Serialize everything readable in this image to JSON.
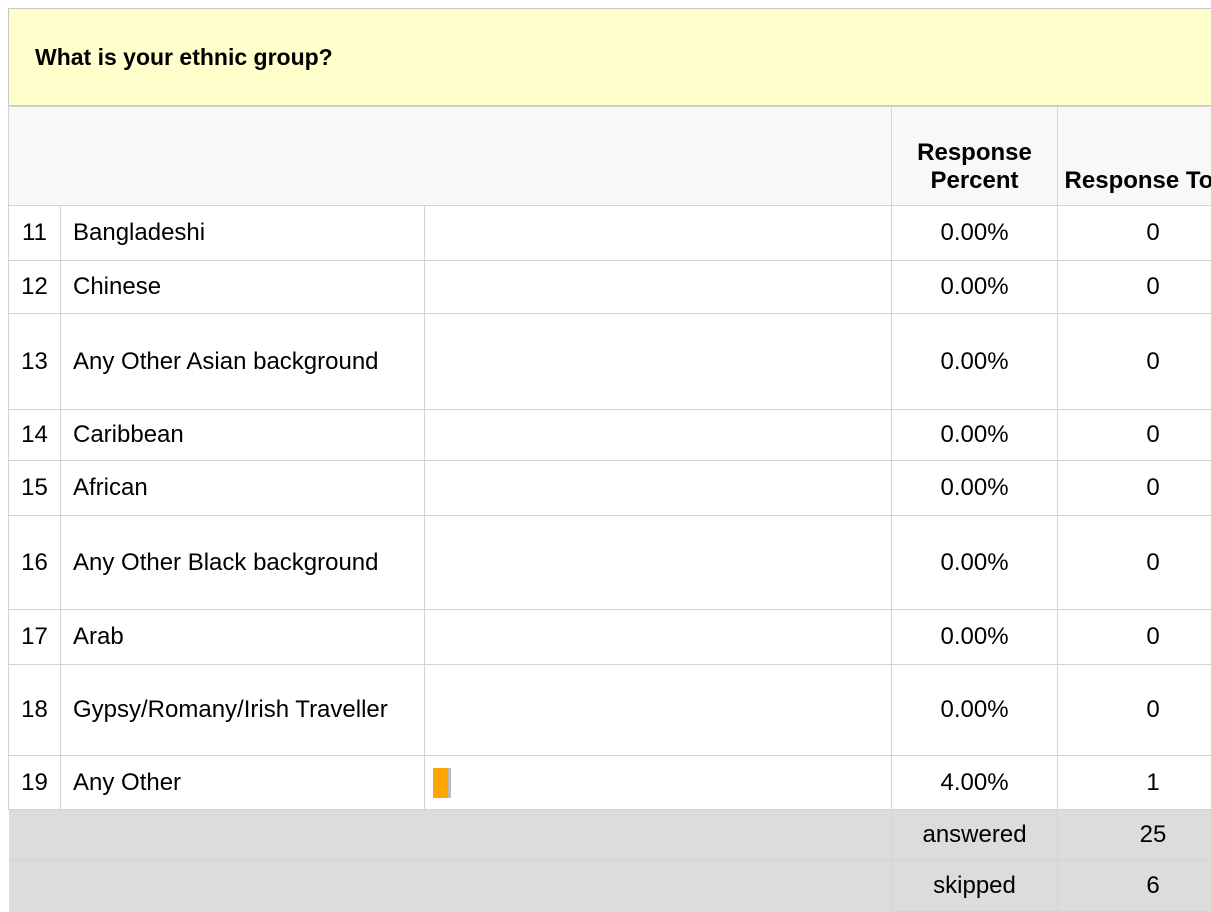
{
  "header": {
    "title": "What is your ethnic group?"
  },
  "table": {
    "columns": [
      "Response Percent",
      "Response Total"
    ],
    "rows": [
      {
        "number": 11,
        "label": "Bangladeshi",
        "percent": "0.00%",
        "total": 0
      },
      {
        "number": 12,
        "label": "Chinese",
        "percent": "0.00%",
        "total": 0
      },
      {
        "number": 13,
        "label": "Any Other Asian background",
        "percent": "0.00%",
        "total": 0
      },
      {
        "number": 14,
        "label": "Caribbean",
        "percent": "0.00%",
        "total": 0
      },
      {
        "number": 15,
        "label": "African",
        "percent": "0.00%",
        "total": 0
      },
      {
        "number": 16,
        "label": "Any Other Black background",
        "percent": "0.00%",
        "total": 0
      },
      {
        "number": 17,
        "label": "Arab",
        "percent": "0.00%",
        "total": 0
      },
      {
        "number": 18,
        "label": "Gypsy/Romany/Irish Traveller",
        "percent": "0.00%",
        "total": 0
      },
      {
        "number": 19,
        "label": "Any Other",
        "percent": "4.00%",
        "total": 1
      }
    ],
    "summary": [
      {
        "label": "answered",
        "value": 25
      },
      {
        "label": "skipped",
        "value": 6
      }
    ]
  }
}
